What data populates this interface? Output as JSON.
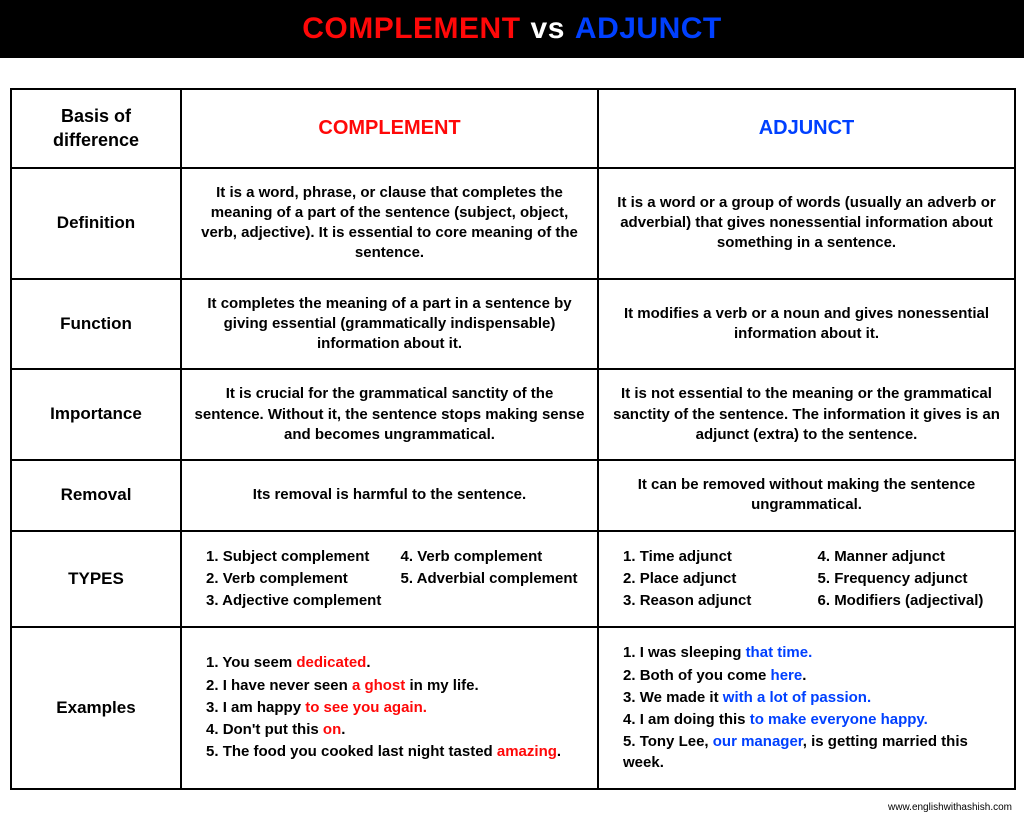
{
  "title": {
    "left": "COMPLEMENT",
    "vs": "vs",
    "right": "ADJUNCT"
  },
  "columns": {
    "basis": "Basis of difference",
    "complement": "COMPLEMENT",
    "adjunct": "ADJUNCT"
  },
  "rows": {
    "definition": {
      "label": "Definition",
      "complement": "It is a word, phrase, or clause that completes the meaning of a part of the sentence (subject, object, verb, adjective). It is essential to core meaning of the sentence.",
      "adjunct": "It is a word or a group of words (usually an adverb or adverbial) that gives nonessential information about something in a sentence."
    },
    "function": {
      "label": "Function",
      "complement": "It completes the meaning of a part in a sentence by giving essential (grammatically indispensable) information about it.",
      "adjunct": "It modifies a verb or a noun and gives nonessential information about it."
    },
    "importance": {
      "label": "Importance",
      "complement": "It is crucial for the grammatical sanctity of the sentence. Without it, the sentence stops making sense and becomes ungrammatical.",
      "adjunct": "It is not essential to the meaning or the grammatical sanctity of the sentence. The information it gives is an adjunct (extra) to the sentence."
    },
    "removal": {
      "label": "Removal",
      "complement": "Its removal is harmful to the sentence.",
      "adjunct": "It can be removed without making the sentence ungrammatical."
    },
    "types": {
      "label": "TYPES",
      "complement_list": [
        "Subject complement",
        "Verb complement",
        "Adjective complement",
        "Verb complement",
        "Adverbial complement"
      ],
      "adjunct_list": [
        "Time adjunct",
        "Place adjunct",
        "Reason adjunct",
        "Manner adjunct",
        "Frequency adjunct",
        "Modifiers (adjectival)"
      ]
    },
    "examples": {
      "label": "Examples",
      "complement_examples": [
        {
          "pre": "You seem ",
          "hl": "dedicated",
          "post": "."
        },
        {
          "pre": "I have never seen ",
          "hl": "a ghost",
          "post": " in my life."
        },
        {
          "pre": "I am happy ",
          "hl": "to see you again.",
          "post": ""
        },
        {
          "pre": "Don't put this ",
          "hl": "on",
          "post": "."
        },
        {
          "pre": "The food you cooked last night tasted ",
          "hl": "amazing",
          "post": "."
        }
      ],
      "adjunct_examples": [
        {
          "pre": "I was sleeping ",
          "hl": "that time.",
          "post": ""
        },
        {
          "pre": "Both of you come ",
          "hl": "here",
          "post": "."
        },
        {
          "pre": "We made it ",
          "hl": "with a lot of passion.",
          "post": ""
        },
        {
          "pre": "I am doing this ",
          "hl": "to make everyone happy.",
          "post": ""
        },
        {
          "pre": "Tony Lee, ",
          "hl": "our manager",
          "post": ", is getting married this week."
        }
      ]
    }
  },
  "footer": "www.englishwithashish.com",
  "colors": {
    "complement": "#ff0808",
    "adjunct": "#0040ff",
    "titlebar_bg": "#000000",
    "text": "#000000"
  },
  "typography": {
    "title_fontsize": 30,
    "header_fontsize": 20,
    "body_fontsize": 15
  }
}
